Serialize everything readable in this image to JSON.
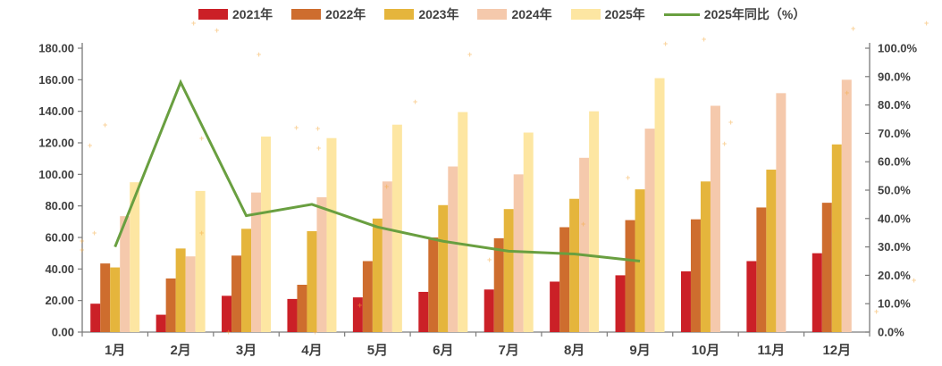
{
  "legend": {
    "items": [
      {
        "label": "2021年",
        "color": "#cb2027",
        "marker": "bar"
      },
      {
        "label": "2022年",
        "color": "#ce6d2e",
        "marker": "bar"
      },
      {
        "label": "2023年",
        "color": "#e5b53c",
        "marker": "bar"
      },
      {
        "label": "2024年",
        "color": "#f5c9ac",
        "marker": "bar"
      },
      {
        "label": "2025年",
        "color": "#fde6a2",
        "marker": "bar"
      },
      {
        "label": "2025年同比（%）",
        "color": "#699f40",
        "marker": "line"
      }
    ]
  },
  "chart_data": {
    "type": "bar+line",
    "title": "",
    "grid": false,
    "legend_position": "top",
    "categories": [
      "1月",
      "2月",
      "3月",
      "4月",
      "5月",
      "6月",
      "7月",
      "8月",
      "9月",
      "10月",
      "11月",
      "12月"
    ],
    "series": [
      {
        "name": "2021年",
        "type": "bar",
        "axis": "left",
        "color": "#cb2027",
        "values": [
          18,
          11,
          23,
          21,
          22,
          25.5,
          27,
          32,
          36,
          38.5,
          45,
          50
        ]
      },
      {
        "name": "2022年",
        "type": "bar",
        "axis": "left",
        "color": "#ce6d2e",
        "values": [
          43.5,
          34,
          48.5,
          30,
          45,
          60,
          59.5,
          66.5,
          71,
          71.5,
          79,
          82
        ]
      },
      {
        "name": "2023年",
        "type": "bar",
        "axis": "left",
        "color": "#e5b53c",
        "values": [
          41,
          53,
          65.5,
          64,
          72,
          80.5,
          78,
          84.5,
          90.5,
          95.5,
          103,
          119
        ]
      },
      {
        "name": "2024年",
        "type": "bar",
        "axis": "left",
        "color": "#f5c9ac",
        "values": [
          73.5,
          48,
          88.5,
          85.5,
          95.5,
          105,
          100,
          110.5,
          129,
          143.5,
          151.5,
          160
        ]
      },
      {
        "name": "2025年",
        "type": "bar",
        "axis": "left",
        "color": "#fde6a2",
        "values": [
          95,
          89.5,
          124,
          123,
          131.5,
          139.5,
          126.5,
          140,
          161,
          null,
          null,
          null
        ]
      },
      {
        "name": "2025年同比（%）",
        "type": "line",
        "axis": "right",
        "color": "#699f40",
        "values": [
          30,
          88,
          41,
          45,
          37,
          32,
          28.5,
          27.5,
          25,
          null,
          null,
          null
        ]
      }
    ],
    "left_axis": {
      "min": 0,
      "max": 180,
      "step": 20,
      "tick_labels": [
        "0.00",
        "20.00",
        "40.00",
        "60.00",
        "80.00",
        "100.00",
        "120.00",
        "140.00",
        "160.00",
        "180.00"
      ]
    },
    "right_axis": {
      "min": 0,
      "max": 100,
      "step": 10,
      "tick_labels": [
        "0.0%",
        "10.0%",
        "20.0%",
        "30.0%",
        "40.0%",
        "50.0%",
        "60.0%",
        "70.0%",
        "80.0%",
        "90.0%",
        "100.0%"
      ]
    },
    "colors": {
      "axis_line": "#7a7a7a",
      "tick_text": "#404040",
      "x_label_text": "#404040"
    }
  }
}
